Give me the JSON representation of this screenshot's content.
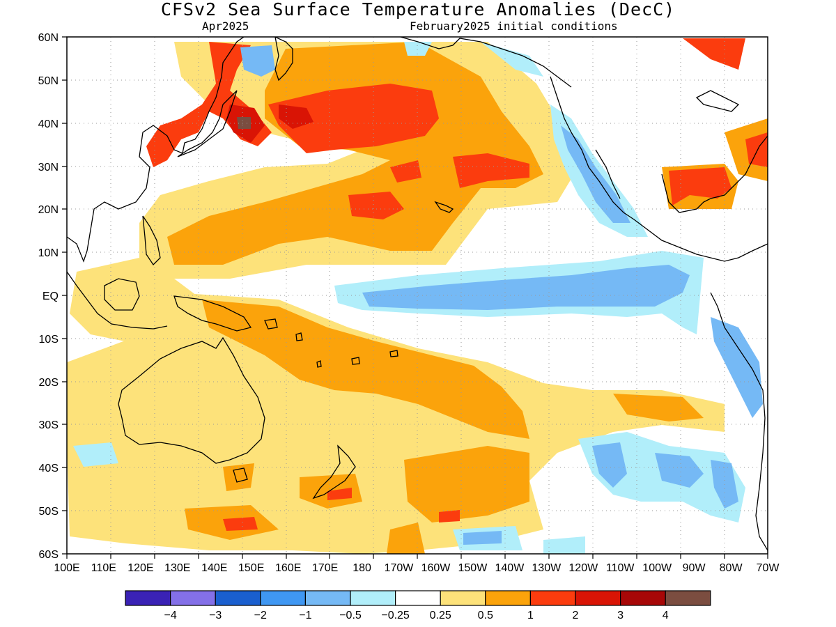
{
  "header": {
    "title": "CFSv2 Sea Surface Temperature Anomalies (DecC)",
    "valid_label": "Apr2025",
    "init_label": "February2025 initial conditions"
  },
  "map": {
    "lat_ticks": [
      "60N",
      "50N",
      "40N",
      "30N",
      "20N",
      "10N",
      "EQ",
      "10S",
      "20S",
      "30S",
      "40S",
      "50S",
      "60S"
    ],
    "lon_ticks": [
      "100E",
      "110E",
      "120E",
      "130E",
      "140E",
      "150E",
      "160E",
      "170E",
      "180",
      "170W",
      "160W",
      "150W",
      "140W",
      "130W",
      "120W",
      "110W",
      "100W",
      "90W",
      "80W",
      "70W"
    ]
  },
  "legend": {
    "colors": [
      "#3a22b5",
      "#8470e8",
      "#1a5fcf",
      "#3f97f2",
      "#75b9f5",
      "#b1eefa",
      "#ffffff",
      "#fde27a",
      "#fba30b",
      "#fb3c0e",
      "#d91405",
      "#a70707",
      "#7b4d40"
    ],
    "labels": [
      "−4",
      "−3",
      "−2",
      "−1",
      "−0.5",
      "−0.25",
      "0.25",
      "0.5",
      "1",
      "2",
      "3",
      "4"
    ]
  },
  "colors": {
    "land_outline": "#000000",
    "grid": "#9a9a9a"
  }
}
